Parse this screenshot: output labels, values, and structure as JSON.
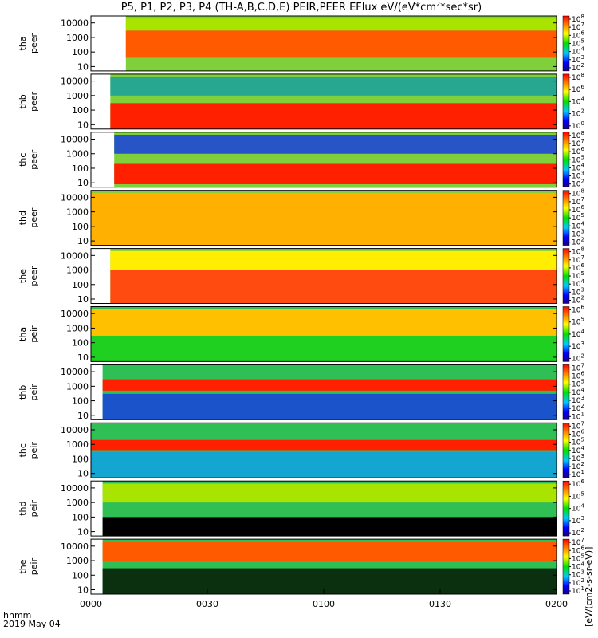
{
  "chart_data": {
    "type": "heatmap",
    "title": "P5, P1, P2, P3, P4 (TH-A,B,C,D,E) PEIR,PEER EFlux eV/(eV*cm²*sec*sr)",
    "title_main": "P5, P1, P2, P3, P4 (TH-A,B,C,D,E) PEIR,PEER EFlux eV/(eV*cm",
    "title_sup": "2",
    "title_end": "*sec*sr)",
    "colorbar_label": "[eV/(cm2-s-sr-eV)]",
    "colorscale": "rainbow (blue → cyan → green → yellow → red)",
    "x_axis": {
      "header_label": "hhmm",
      "date_label": "2019 May 04",
      "ticks": [
        "0000",
        "0030",
        "0100",
        "0130",
        "0200"
      ],
      "range": [
        "00:00",
        "02:00"
      ]
    },
    "y_scale": "log",
    "y_range": [
      5,
      30000
    ],
    "y_ticks": [
      "10000",
      "1000",
      "100",
      "10"
    ],
    "panels": [
      {
        "probe": "tha",
        "species": "peer",
        "colorbar_ticks": [
          "10^8",
          "10^7",
          "10^6",
          "10^5",
          "10^4",
          "10^3",
          "10^2"
        ],
        "data_start_hhmm": "0009",
        "bands": [
          {
            "energy_low_eV": 40,
            "energy_high_eV": 3000,
            "level": "red/orange"
          },
          {
            "energy_low_eV": 3000,
            "energy_high_eV": 20000,
            "level": "yellow/green"
          }
        ]
      },
      {
        "probe": "thb",
        "species": "peer",
        "colorbar_ticks": [
          "10^8",
          "10^6",
          "10^4",
          "10^2",
          "10^0"
        ],
        "data_start_hhmm": "0005",
        "bands": [
          {
            "energy_low_eV": 5,
            "energy_high_eV": 300,
            "level": "red"
          },
          {
            "energy_low_eV": 1000,
            "energy_high_eV": 20000,
            "level": "blue/green noise"
          }
        ]
      },
      {
        "probe": "thc",
        "species": "peer",
        "colorbar_ticks": [
          "10^8",
          "10^7",
          "10^6",
          "10^5",
          "10^4",
          "10^3",
          "10^2"
        ],
        "data_start_hhmm": "0006",
        "bands": [
          {
            "energy_low_eV": 8,
            "energy_high_eV": 200,
            "level": "red"
          },
          {
            "energy_low_eV": 1000,
            "energy_high_eV": 20000,
            "level": "blue noise"
          }
        ]
      },
      {
        "probe": "thd",
        "species": "peer",
        "colorbar_ticks": [
          "10^8",
          "10^7",
          "10^6",
          "10^5",
          "10^4",
          "10^3",
          "10^2"
        ],
        "data_start_hhmm": "0000",
        "bands": [
          {
            "energy_low_eV": 5,
            "energy_high_eV": 20000,
            "level": "orange/yellow"
          }
        ]
      },
      {
        "probe": "the",
        "species": "peer",
        "colorbar_ticks": [
          "10^8",
          "10^7",
          "10^6",
          "10^5",
          "10^4",
          "10^3",
          "10^2"
        ],
        "data_start_hhmm": "0005",
        "bands": [
          {
            "energy_low_eV": 5,
            "energy_high_eV": 1000,
            "level": "orange/red"
          },
          {
            "energy_low_eV": 1000,
            "energy_high_eV": 20000,
            "level": "yellow"
          }
        ]
      },
      {
        "probe": "tha",
        "species": "peir",
        "colorbar_ticks": [
          "10^6",
          "10^5",
          "10^4",
          "10^3",
          "10^2"
        ],
        "data_start_hhmm": "0000",
        "bands": [
          {
            "energy_low_eV": 300,
            "energy_high_eV": 20000,
            "level": "yellow/orange"
          },
          {
            "energy_low_eV": 5,
            "energy_high_eV": 300,
            "level": "green"
          }
        ]
      },
      {
        "probe": "thb",
        "species": "peir",
        "colorbar_ticks": [
          "10^7",
          "10^6",
          "10^5",
          "10^4",
          "10^3",
          "10^2",
          "10^1"
        ],
        "data_start_hhmm": "0003",
        "bands": [
          {
            "energy_low_eV": 500,
            "energy_high_eV": 3000,
            "level": "red"
          },
          {
            "energy_low_eV": 5,
            "energy_high_eV": 300,
            "level": "blue noise"
          }
        ]
      },
      {
        "probe": "thc",
        "species": "peir",
        "colorbar_ticks": [
          "10^7",
          "10^6",
          "10^5",
          "10^4",
          "10^3",
          "10^2",
          "10^1"
        ],
        "data_start_hhmm": "0000",
        "bands": [
          {
            "energy_low_eV": 400,
            "energy_high_eV": 2000,
            "level": "red"
          },
          {
            "energy_low_eV": 5,
            "energy_high_eV": 300,
            "level": "blue/cyan noise"
          }
        ]
      },
      {
        "probe": "thd",
        "species": "peir",
        "colorbar_ticks": [
          "10^6",
          "10^5",
          "10^4",
          "10^3",
          "10^2"
        ],
        "data_start_hhmm": "0003",
        "bands": [
          {
            "energy_low_eV": 1000,
            "energy_high_eV": 20000,
            "level": "yellow/green"
          },
          {
            "energy_low_eV": 5,
            "energy_high_eV": 100,
            "level": "black (no data)"
          }
        ]
      },
      {
        "probe": "the",
        "species": "peir",
        "colorbar_ticks": [
          "10^7",
          "10^6",
          "10^5",
          "10^4",
          "10^3",
          "10^2",
          "10^1"
        ],
        "data_start_hhmm": "0003",
        "bands": [
          {
            "energy_low_eV": 1000,
            "energy_high_eV": 20000,
            "level": "red/orange"
          },
          {
            "energy_low_eV": 5,
            "energy_high_eV": 300,
            "level": "black/green"
          }
        ]
      }
    ]
  }
}
